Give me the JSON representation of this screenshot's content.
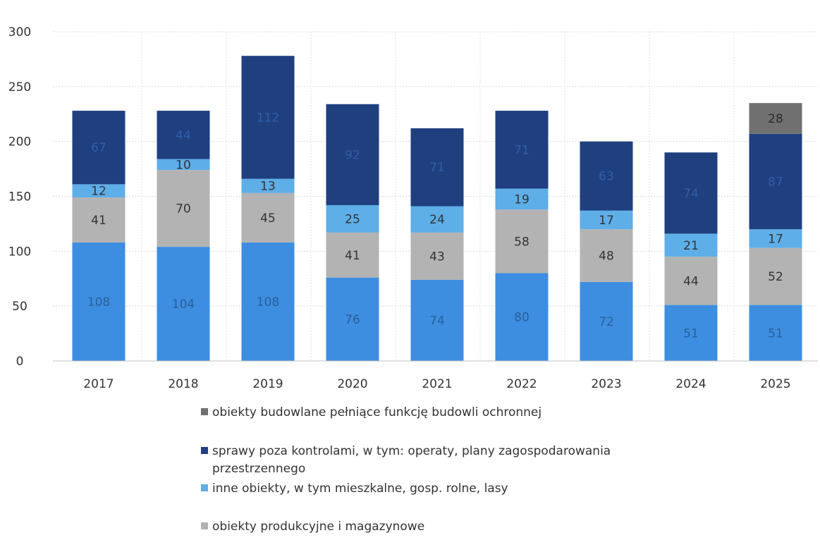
{
  "chart_data": {
    "type": "bar",
    "stacked": true,
    "categories": [
      "2017",
      "2018",
      "2019",
      "2020",
      "2021",
      "2022",
      "2023",
      "2024",
      "2025"
    ],
    "ylim": [
      0,
      300
    ],
    "yticks": [
      0,
      50,
      100,
      150,
      200,
      250,
      300
    ],
    "grid": true,
    "legend_position": "bottom",
    "series": [
      {
        "name": "obiekty produkcyjne i magazynowe",
        "color": "#b3b3b3",
        "label_color": "#333333",
        "values": [
          0,
          0,
          0,
          0,
          0,
          0,
          0,
          0,
          0
        ]
      },
      {
        "name": "inne obiekty, w tym mieszkalne, gosp. rolne, lasy",
        "color": "#3d8ee0",
        "label_color": "#2a5f9a",
        "values": [
          108,
          104,
          108,
          76,
          74,
          80,
          72,
          51,
          51
        ]
      },
      {
        "name": "obiekty produkcyjne i magazynowe",
        "color": "#b3b3b3",
        "label_color": "#333333",
        "values": [
          41,
          70,
          45,
          41,
          43,
          58,
          48,
          44,
          52
        ]
      },
      {
        "name": "inne obiekty, w tym mieszkalne, gosp. rolne, lasy",
        "color": "#5eaee8",
        "label_color": "#333333",
        "values": [
          12,
          10,
          13,
          25,
          24,
          19,
          17,
          21,
          17
        ]
      },
      {
        "name": "sprawy poza kontrolami, w tym: operaty, plany zagospodarowania przestrzennego",
        "color": "#1f3f7f",
        "label_color": "#2f5fa8",
        "values": [
          67,
          44,
          112,
          92,
          71,
          71,
          63,
          74,
          87
        ]
      },
      {
        "name": "obiekty budowlane pełniące funkcję budowli ochronnej",
        "color": "#707070",
        "label_color": "#2b2b2b",
        "values": [
          0,
          0,
          0,
          0,
          0,
          0,
          0,
          0,
          28
        ]
      }
    ],
    "legend": [
      {
        "label": "obiekty budowlane pełniące funkcję budowli ochronnej",
        "color": "#707070"
      },
      {
        "label": "sprawy poza kontrolami, w tym: operaty, plany zagospodarowania",
        "label_cont": "przestrzennego",
        "color": "#1f3f7f"
      },
      {
        "label": "inne obiekty, w tym mieszkalne, gosp. rolne, lasy",
        "color": "#5eaee8"
      },
      {
        "label": "obiekty produkcyjne i magazynowe",
        "color": "#b3b3b3"
      }
    ]
  }
}
